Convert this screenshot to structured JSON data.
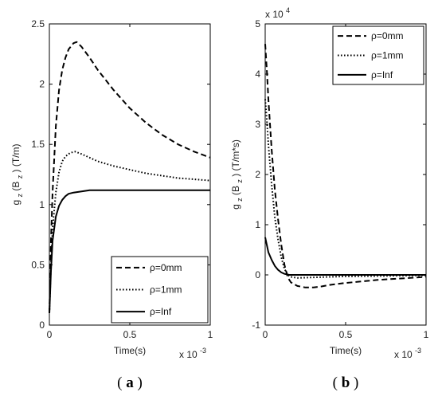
{
  "chart_data": [
    {
      "type": "line",
      "panel_label_open": "(",
      "panel_label_letter": "a",
      "panel_label_close": ")",
      "xlabel": "Time(s)",
      "x_multiplier": "x 10",
      "x_multiplier_exp": "-3",
      "ylabel_main": "g",
      "ylabel_sub": "z",
      "ylabel_mid": "(B",
      "ylabel_sub2": "z",
      "ylabel_tail": ") (T/m)",
      "xlim": [
        0,
        1
      ],
      "ylim": [
        0,
        2.5
      ],
      "x_ticks": [
        0,
        0.5,
        1
      ],
      "x_tick_labels": [
        "0",
        "0.5",
        "1"
      ],
      "y_ticks": [
        0,
        0.5,
        1,
        1.5,
        2,
        2.5
      ],
      "y_tick_labels": [
        "0",
        "0.5",
        "1",
        "1.5",
        "2",
        "2.5"
      ],
      "legend_position": "bottom-right",
      "series": [
        {
          "name": "ρ=0mm",
          "style": "dashed",
          "x": [
            0,
            0.01,
            0.02,
            0.04,
            0.06,
            0.08,
            0.1,
            0.12,
            0.15,
            0.17,
            0.2,
            0.25,
            0.3,
            0.4,
            0.5,
            0.6,
            0.7,
            0.8,
            0.9,
            1.0
          ],
          "y": [
            0.1,
            0.7,
            1.1,
            1.65,
            1.95,
            2.12,
            2.22,
            2.29,
            2.34,
            2.35,
            2.31,
            2.22,
            2.12,
            1.95,
            1.8,
            1.68,
            1.58,
            1.5,
            1.44,
            1.39
          ]
        },
        {
          "name": "ρ=1mm",
          "style": "dotted",
          "x": [
            0,
            0.01,
            0.02,
            0.04,
            0.06,
            0.08,
            0.1,
            0.13,
            0.16,
            0.2,
            0.25,
            0.3,
            0.4,
            0.5,
            0.6,
            0.7,
            0.8,
            0.9,
            1.0
          ],
          "y": [
            0.1,
            0.5,
            0.8,
            1.1,
            1.27,
            1.36,
            1.4,
            1.43,
            1.44,
            1.42,
            1.39,
            1.36,
            1.32,
            1.29,
            1.26,
            1.24,
            1.22,
            1.21,
            1.2
          ]
        },
        {
          "name": "ρ=Inf",
          "style": "solid",
          "x": [
            0,
            0.01,
            0.02,
            0.04,
            0.06,
            0.08,
            0.1,
            0.12,
            0.15,
            0.2,
            0.25,
            0.3,
            0.5,
            0.75,
            1.0
          ],
          "y": [
            0.1,
            0.45,
            0.7,
            0.9,
            0.99,
            1.04,
            1.07,
            1.09,
            1.1,
            1.11,
            1.12,
            1.12,
            1.12,
            1.12,
            1.12
          ]
        }
      ]
    },
    {
      "type": "line",
      "panel_label_open": "(",
      "panel_label_letter": "b",
      "panel_label_close": ")",
      "xlabel": "Time(s)",
      "x_multiplier": "x 10",
      "x_multiplier_exp": "-3",
      "y_multiplier": "x 10",
      "y_multiplier_exp": "4",
      "ylabel_main": "g",
      "ylabel_sub": "z",
      "ylabel_mid": "(B",
      "ylabel_sub2": "z",
      "ylabel_tail": ") (T/m*s)",
      "xlim": [
        0,
        1
      ],
      "ylim": [
        -1,
        5
      ],
      "x_ticks": [
        0,
        0.5,
        1
      ],
      "x_tick_labels": [
        "0",
        "0.5",
        "1"
      ],
      "y_ticks": [
        -1,
        0,
        1,
        2,
        3,
        4,
        5
      ],
      "y_tick_labels": [
        "-1",
        "0",
        "1",
        "2",
        "3",
        "4",
        "5"
      ],
      "legend_position": "top-right",
      "series": [
        {
          "name": "ρ=0mm",
          "style": "dashed",
          "x": [
            0,
            0.01,
            0.02,
            0.04,
            0.06,
            0.08,
            0.1,
            0.12,
            0.14,
            0.16,
            0.2,
            0.25,
            0.3,
            0.35,
            0.4,
            0.5,
            0.6,
            0.7,
            0.8,
            0.9,
            1.0
          ],
          "y": [
            4.6,
            4.1,
            3.5,
            2.5,
            1.7,
            1.1,
            0.6,
            0.2,
            -0.05,
            -0.15,
            -0.22,
            -0.25,
            -0.25,
            -0.23,
            -0.2,
            -0.16,
            -0.13,
            -0.1,
            -0.08,
            -0.06,
            -0.04
          ]
        },
        {
          "name": "ρ=1mm",
          "style": "dotted",
          "x": [
            0,
            0.01,
            0.02,
            0.04,
            0.06,
            0.08,
            0.1,
            0.12,
            0.14,
            0.16,
            0.2,
            0.3,
            0.5,
            0.75,
            1.0
          ],
          "y": [
            3.5,
            3.1,
            2.6,
            1.8,
            1.15,
            0.7,
            0.35,
            0.12,
            0.0,
            -0.04,
            -0.06,
            -0.05,
            -0.03,
            -0.02,
            -0.01
          ]
        },
        {
          "name": "ρ=Inf",
          "style": "solid",
          "x": [
            0,
            0.01,
            0.02,
            0.04,
            0.06,
            0.08,
            0.1,
            0.12,
            0.15,
            0.2,
            0.3,
            0.5,
            0.75,
            1.0
          ],
          "y": [
            0.75,
            0.6,
            0.45,
            0.3,
            0.18,
            0.1,
            0.05,
            0.02,
            0.0,
            0.0,
            0.0,
            0.0,
            0.0,
            0.0
          ]
        }
      ]
    }
  ]
}
